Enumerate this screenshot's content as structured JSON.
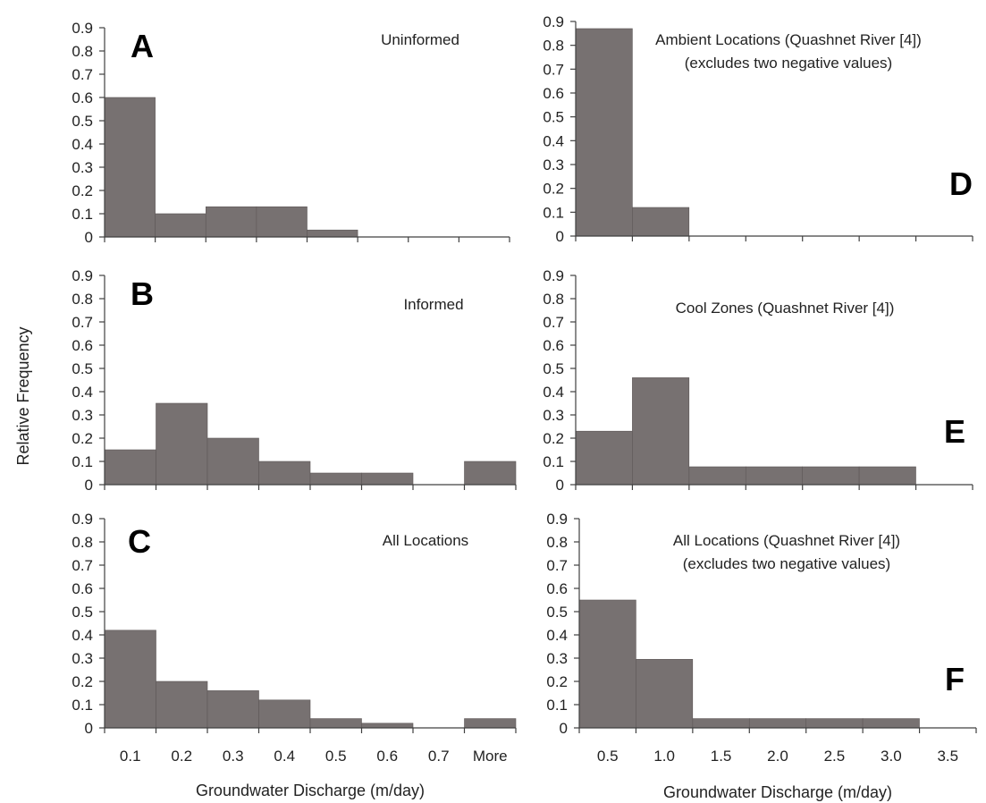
{
  "figure": {
    "ylabel": "Relative Frequency"
  },
  "chart_data": [
    {
      "id": "A",
      "type": "bar",
      "letter": "A",
      "title_lines": [
        "Uninformed"
      ],
      "categories": [
        "0.1",
        "0.2",
        "0.3",
        "0.4",
        "0.5",
        "0.6",
        "0.7",
        "More"
      ],
      "values": [
        0.6,
        0.1,
        0.13,
        0.13,
        0.03,
        0,
        0,
        0
      ],
      "ylim": [
        0,
        0.9
      ],
      "yticks": [
        "0",
        "0.1",
        "0.2",
        "0.3",
        "0.4",
        "0.5",
        "0.6",
        "0.7",
        "0.8",
        "0.9"
      ],
      "xlabel": "",
      "show_xtick_labels": false
    },
    {
      "id": "B",
      "type": "bar",
      "letter": "B",
      "title_lines": [
        "Informed"
      ],
      "categories": [
        "0.1",
        "0.2",
        "0.3",
        "0.4",
        "0.5",
        "0.6",
        "0.7",
        "More"
      ],
      "values": [
        0.15,
        0.35,
        0.2,
        0.1,
        0.05,
        0.05,
        0,
        0.1
      ],
      "ylim": [
        0,
        0.9
      ],
      "yticks": [
        "0",
        "0.1",
        "0.2",
        "0.3",
        "0.4",
        "0.5",
        "0.6",
        "0.7",
        "0.8",
        "0.9"
      ],
      "xlabel": "",
      "show_xtick_labels": false
    },
    {
      "id": "C",
      "type": "bar",
      "letter": "C",
      "title_lines": [
        "All Locations"
      ],
      "categories": [
        "0.1",
        "0.2",
        "0.3",
        "0.4",
        "0.5",
        "0.6",
        "0.7",
        "More"
      ],
      "values": [
        0.42,
        0.2,
        0.16,
        0.12,
        0.04,
        0.02,
        0,
        0.04
      ],
      "ylim": [
        0,
        0.9
      ],
      "yticks": [
        "0",
        "0.1",
        "0.2",
        "0.3",
        "0.4",
        "0.5",
        "0.6",
        "0.7",
        "0.8",
        "0.9"
      ],
      "xlabel": "Groundwater Discharge (m/day)",
      "show_xtick_labels": true
    },
    {
      "id": "D",
      "type": "bar",
      "letter": "D",
      "title_lines": [
        "Ambient Locations (Quashnet River [4])",
        "(excludes two negative values)"
      ],
      "categories": [
        "0.5",
        "1.0",
        "1.5",
        "2.0",
        "2.5",
        "3.0",
        "3.5"
      ],
      "values": [
        0.87,
        0.12,
        0,
        0,
        0,
        0,
        0
      ],
      "ylim": [
        0,
        0.9
      ],
      "yticks": [
        "0",
        "0.1",
        "0.2",
        "0.3",
        "0.4",
        "0.5",
        "0.6",
        "0.7",
        "0.8",
        "0.9"
      ],
      "xlabel": "",
      "show_xtick_labels": false
    },
    {
      "id": "E",
      "type": "bar",
      "letter": "E",
      "title_lines": [
        "Cool Zones (Quashnet River [4])"
      ],
      "categories": [
        "0.5",
        "1.0",
        "1.5",
        "2.0",
        "2.5",
        "3.0",
        "3.5"
      ],
      "values": [
        0.23,
        0.46,
        0.077,
        0.077,
        0.077,
        0.077,
        0
      ],
      "ylim": [
        0,
        0.9
      ],
      "yticks": [
        "0",
        "0.1",
        "0.2",
        "0.3",
        "0.4",
        "0.5",
        "0.6",
        "0.7",
        "0.8",
        "0.9"
      ],
      "xlabel": "",
      "show_xtick_labels": false
    },
    {
      "id": "F",
      "type": "bar",
      "letter": "F",
      "title_lines": [
        "All Locations (Quashnet River [4])",
        "(excludes two negative values)"
      ],
      "categories": [
        "0.5",
        "1.0",
        "1.5",
        "2.0",
        "2.5",
        "3.0",
        "3.5"
      ],
      "values": [
        0.55,
        0.295,
        0.04,
        0.04,
        0.04,
        0.04,
        0
      ],
      "ylim": [
        0,
        0.9
      ],
      "yticks": [
        "0",
        "0.1",
        "0.2",
        "0.3",
        "0.4",
        "0.5",
        "0.6",
        "0.7",
        "0.8",
        "0.9"
      ],
      "xlabel": "Groundwater Discharge (m/day)",
      "show_xtick_labels": true
    }
  ],
  "colors": {
    "bar_fill": "#777171",
    "bar_stroke": "#5e5858",
    "axis": "#404040",
    "text": "#222222",
    "letter": "#000000",
    "background": "#ffffff"
  }
}
